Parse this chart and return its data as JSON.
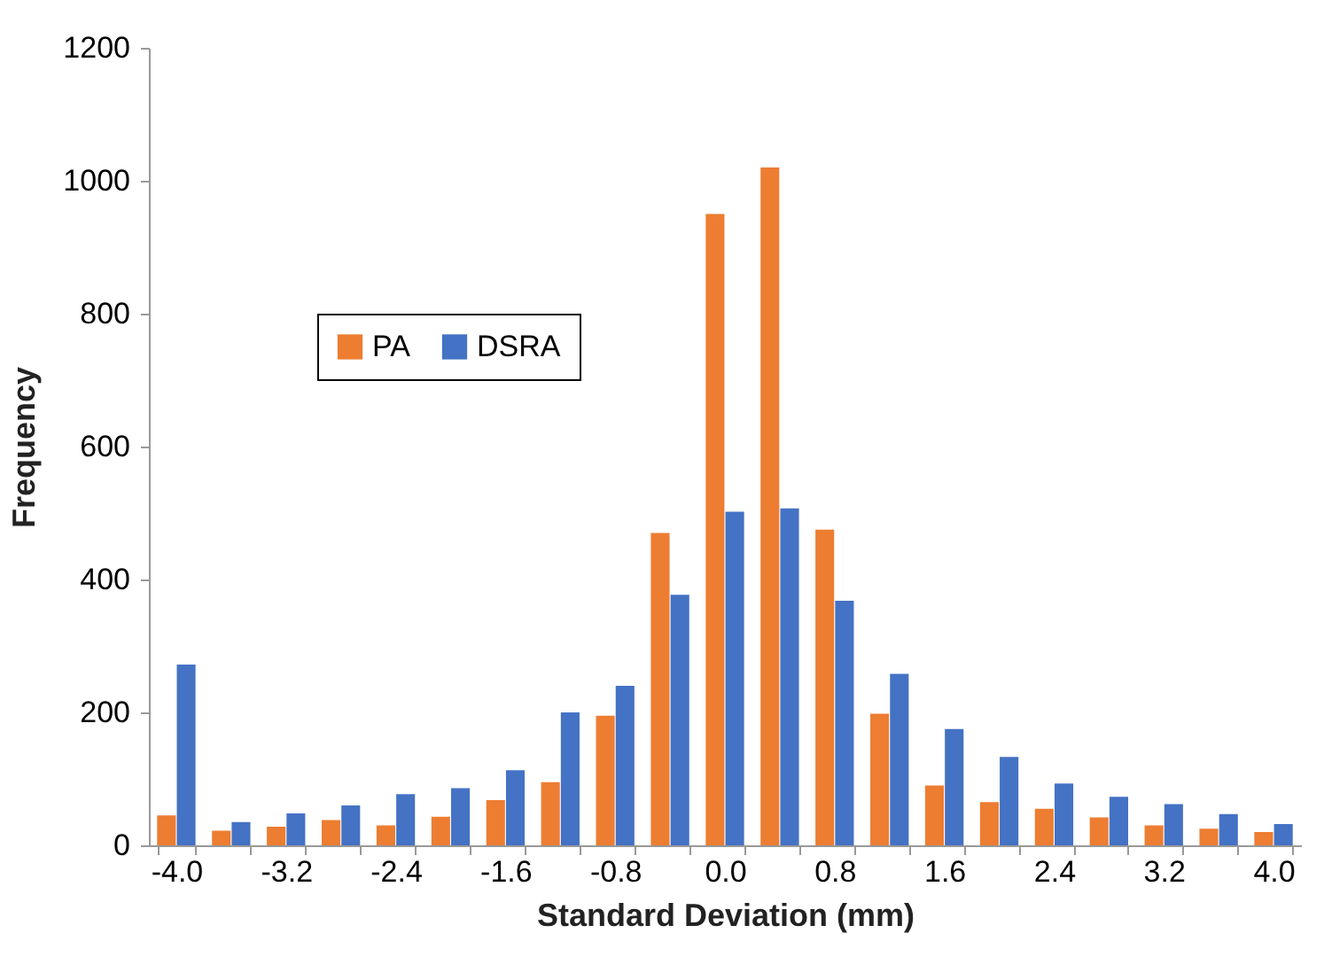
{
  "chart_data": {
    "type": "bar",
    "xlabel": "Standard Deviation (mm)",
    "ylabel": "Frequency",
    "categories": [
      "-4.0",
      null,
      "-3.2",
      null,
      "-2.4",
      null,
      "-1.6",
      null,
      "-0.8",
      null,
      "0.0",
      null,
      "0.8",
      null,
      "1.6",
      null,
      "2.4",
      null,
      "3.2",
      null,
      "4.0"
    ],
    "series": [
      {
        "name": "PA",
        "color": "#ed7d31",
        "values": [
          45,
          22,
          28,
          38,
          30,
          43,
          68,
          95,
          195,
          470,
          950,
          1020,
          475,
          198,
          90,
          65,
          55,
          42,
          30,
          25,
          20
        ]
      },
      {
        "name": "DSRA",
        "color": "#4472c4",
        "values": [
          272,
          35,
          48,
          60,
          77,
          86,
          113,
          200,
          240,
          377,
          502,
          507,
          368,
          258,
          175,
          133,
          93,
          73,
          62,
          47,
          32
        ]
      }
    ],
    "ylim": [
      0,
      1200
    ],
    "yticks": [
      0,
      200,
      400,
      600,
      800,
      1000,
      1200
    ],
    "grid": false,
    "legend": "top left"
  }
}
